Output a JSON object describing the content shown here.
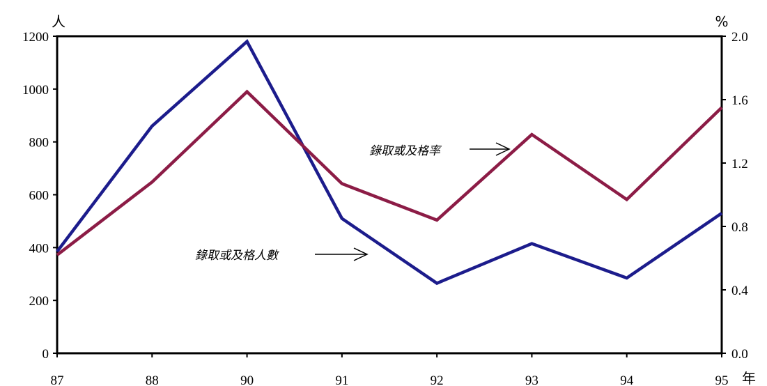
{
  "chart_data": {
    "type": "line",
    "x": [
      "87",
      "88",
      "90",
      "91",
      "92",
      "93",
      "94",
      "95"
    ],
    "x_unit": "年",
    "left_axis": {
      "unit": "人",
      "ylim": [
        0,
        1200
      ],
      "ticks": [
        "0",
        "200",
        "400",
        "600",
        "800",
        "1000",
        "1200"
      ]
    },
    "right_axis": {
      "unit": "%",
      "ylim": [
        0.0,
        2.0
      ],
      "ticks": [
        "0.0",
        "0.4",
        "0.8",
        "1.2",
        "1.6",
        "2.0"
      ]
    },
    "series": [
      {
        "name": "錄取或及格人數",
        "axis": "left",
        "color": "#1c1c8c",
        "values": [
          385,
          860,
          1180,
          510,
          265,
          415,
          285,
          530
        ]
      },
      {
        "name": "錄取或及格率",
        "axis": "right",
        "color": "#8c1c46",
        "values": [
          0.62,
          1.08,
          1.65,
          1.07,
          0.84,
          1.38,
          0.97,
          1.55
        ]
      }
    ],
    "grid": false,
    "legend": "inline annotations with arrows"
  }
}
